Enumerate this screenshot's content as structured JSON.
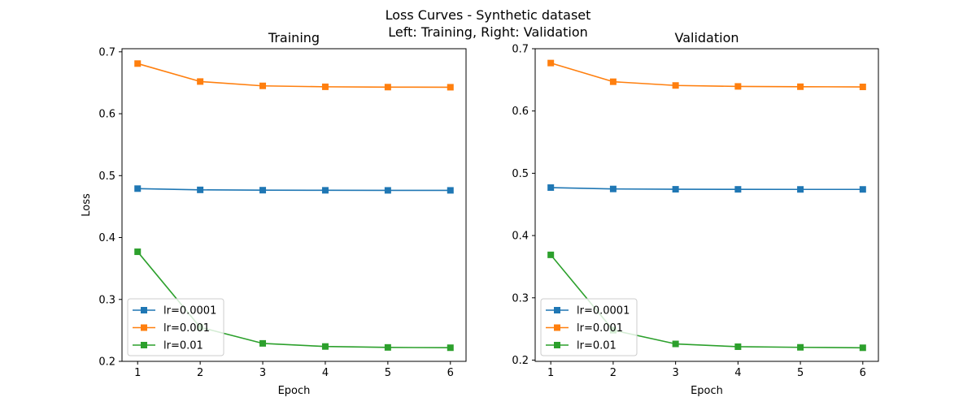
{
  "figure": {
    "title_line1": "Loss Curves - Synthetic dataset",
    "title_line2": "Left: Training, Right: Validation"
  },
  "colors": {
    "lr=0.0001": "#1f77b4",
    "lr=0.001": "#ff7f0e",
    "lr=0.01": "#2ca02c"
  },
  "chart_data": [
    {
      "type": "line",
      "title": "Training",
      "xlabel": "Epoch",
      "ylabel": "Loss",
      "x": [
        1,
        2,
        3,
        4,
        5,
        6
      ],
      "xlim": [
        0.75,
        6.25
      ],
      "ylim": [
        0.2,
        0.705
      ],
      "yticks": [
        0.2,
        0.3,
        0.4,
        0.5,
        0.6,
        0.7
      ],
      "xticks": [
        1,
        2,
        3,
        4,
        5,
        6
      ],
      "grid": false,
      "legend": "lower-left",
      "marker": "square",
      "series": [
        {
          "name": "lr=0.0001",
          "values": [
            0.479,
            0.477,
            0.4765,
            0.4763,
            0.4762,
            0.4762
          ]
        },
        {
          "name": "lr=0.001",
          "values": [
            0.681,
            0.652,
            0.645,
            0.6435,
            0.643,
            0.6428
          ]
        },
        {
          "name": "lr=0.01",
          "values": [
            0.377,
            0.255,
            0.229,
            0.224,
            0.2225,
            0.222
          ]
        }
      ]
    },
    {
      "type": "line",
      "title": "Validation",
      "xlabel": "Epoch",
      "ylabel": "",
      "x": [
        1,
        2,
        3,
        4,
        5,
        6
      ],
      "xlim": [
        0.75,
        6.25
      ],
      "ylim": [
        0.198,
        0.7
      ],
      "yticks": [
        0.2,
        0.3,
        0.4,
        0.5,
        0.6,
        0.7
      ],
      "xticks": [
        1,
        2,
        3,
        4,
        5,
        6
      ],
      "grid": false,
      "legend": "lower-left",
      "marker": "square",
      "series": [
        {
          "name": "lr=0.0001",
          "values": [
            0.477,
            0.4748,
            0.4743,
            0.4742,
            0.4741,
            0.4741
          ]
        },
        {
          "name": "lr=0.001",
          "values": [
            0.677,
            0.647,
            0.641,
            0.6395,
            0.639,
            0.6387
          ]
        },
        {
          "name": "lr=0.01",
          "values": [
            0.369,
            0.248,
            0.226,
            0.2215,
            0.2205,
            0.2198
          ]
        }
      ]
    }
  ]
}
